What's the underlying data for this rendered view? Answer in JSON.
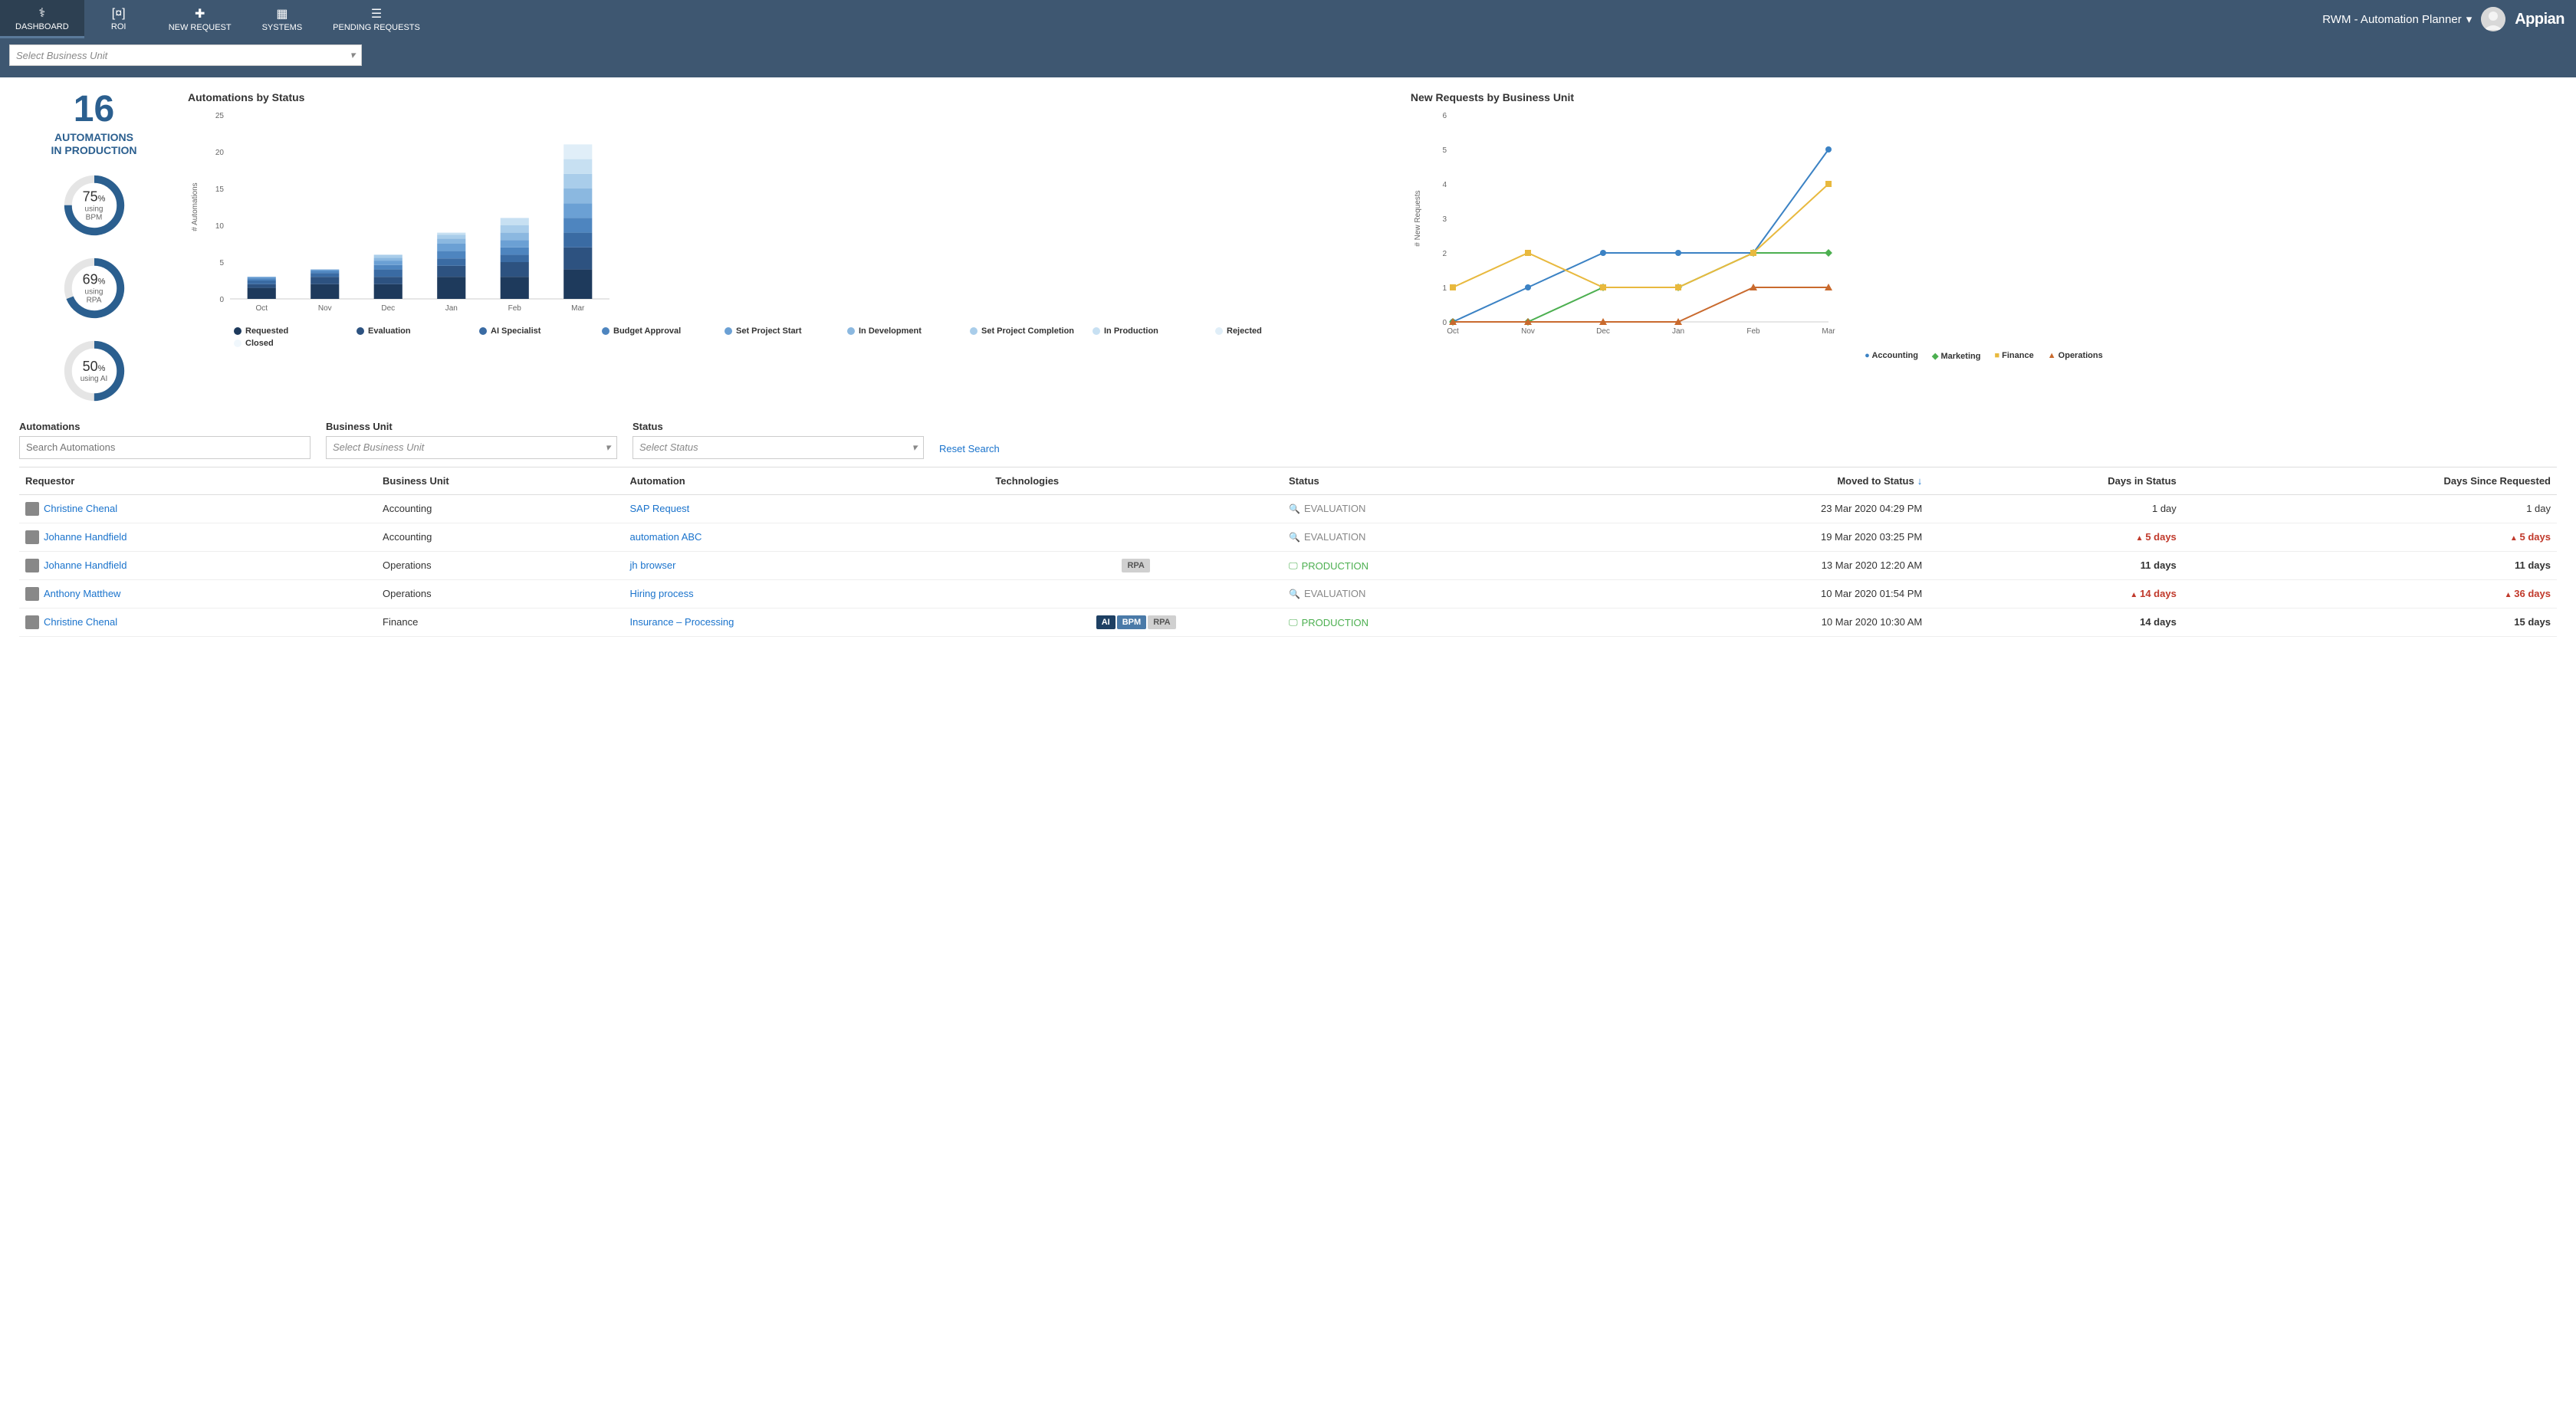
{
  "nav": {
    "items": [
      {
        "label": "DASHBOARD",
        "icon": "⚕"
      },
      {
        "label": "ROI",
        "icon": "[¤]"
      },
      {
        "label": "NEW REQUEST",
        "icon": "✚"
      },
      {
        "label": "SYSTEMS",
        "icon": "▦"
      },
      {
        "label": "PENDING REQUESTS",
        "icon": "☰"
      }
    ],
    "user_label": "RWM - Automation Planner",
    "brand": "Appian"
  },
  "subbar": {
    "bu_placeholder": "Select Business Unit"
  },
  "kpi": {
    "count": "16",
    "label1": "AUTOMATIONS",
    "label2": "IN PRODUCTION",
    "donuts": [
      {
        "pct": "75",
        "sub": "using BPM",
        "fill": 75,
        "color": "#2b5f8f"
      },
      {
        "pct": "69",
        "sub": "using RPA",
        "fill": 69,
        "color": "#2b5f8f"
      },
      {
        "pct": "50",
        "sub": "using AI",
        "fill": 50,
        "color": "#2b5f8f"
      }
    ]
  },
  "bar_chart": {
    "title": "Automations by Status",
    "type": "stacked-bar",
    "ylabel": "# Automations",
    "ylim": [
      0,
      25
    ],
    "yticks": [
      0,
      5,
      10,
      15,
      20,
      25
    ],
    "categories": [
      "Oct",
      "Nov",
      "Dec",
      "Jan",
      "Feb",
      "Mar"
    ],
    "series": [
      {
        "name": "Requested",
        "color": "#1e3a5c",
        "vals": [
          1.5,
          2,
          2,
          3,
          3,
          4
        ]
      },
      {
        "name": "Evaluation",
        "color": "#2d5280",
        "vals": [
          0.5,
          1,
          1,
          1.5,
          2,
          3
        ]
      },
      {
        "name": "AI Specialist",
        "color": "#3a6ba3",
        "vals": [
          0.5,
          0.5,
          1,
          1,
          1,
          2
        ]
      },
      {
        "name": "Budget Approval",
        "color": "#4e85bf",
        "vals": [
          0.3,
          0.3,
          0.6,
          1,
          1,
          2
        ]
      },
      {
        "name": "Set Project Start",
        "color": "#6ba0d4",
        "vals": [
          0.2,
          0.2,
          0.6,
          1,
          1,
          2
        ]
      },
      {
        "name": "In Development",
        "color": "#8bb8e0",
        "vals": [
          0,
          0,
          0.4,
          0.7,
          1,
          2
        ]
      },
      {
        "name": "Set Project Completion",
        "color": "#a9cdea",
        "vals": [
          0,
          0,
          0.4,
          0.5,
          1,
          2
        ]
      },
      {
        "name": "In Production",
        "color": "#c7e0f2",
        "vals": [
          0,
          0,
          0,
          0.3,
          1,
          2
        ]
      },
      {
        "name": "Rejected",
        "color": "#e0eef8",
        "vals": [
          0,
          0,
          0,
          0,
          0,
          2
        ]
      },
      {
        "name": "Closed",
        "color": "#f0f7fc",
        "vals": [
          0,
          0,
          0,
          0,
          0,
          0
        ]
      }
    ],
    "legend_order": [
      "Requested",
      "Evaluation",
      "AI Specialist",
      "Budget Approval",
      "Set Project Start",
      "In Development",
      "Set Project Completion",
      "In Production",
      "Rejected",
      "Closed"
    ]
  },
  "line_chart": {
    "title": "New Requests by Business Unit",
    "type": "line",
    "ylabel": "# New Requests",
    "ylim": [
      0,
      6
    ],
    "yticks": [
      0,
      1,
      2,
      3,
      4,
      5,
      6
    ],
    "categories": [
      "Oct",
      "Nov",
      "Dec",
      "Jan",
      "Feb",
      "Mar"
    ],
    "series": [
      {
        "name": "Accounting",
        "color": "#3b82c4",
        "marker": "circle",
        "vals": [
          0,
          1,
          2,
          2,
          2,
          5
        ]
      },
      {
        "name": "Marketing",
        "color": "#4caf50",
        "marker": "diamond",
        "vals": [
          0,
          0,
          1,
          1,
          2,
          2
        ]
      },
      {
        "name": "Finance",
        "color": "#e8b93e",
        "marker": "square",
        "vals": [
          1,
          2,
          1,
          1,
          2,
          4
        ]
      },
      {
        "name": "Operations",
        "color": "#c96a2e",
        "marker": "triangle",
        "vals": [
          0,
          0,
          0,
          0,
          1,
          1
        ]
      }
    ]
  },
  "filters": {
    "automations_label": "Automations",
    "automations_placeholder": "Search Automations",
    "bu_label": "Business Unit",
    "bu_placeholder": "Select Business Unit",
    "status_label": "Status",
    "status_placeholder": "Select Status",
    "reset": "Reset Search"
  },
  "table": {
    "columns": [
      "Requestor",
      "Business Unit",
      "Automation",
      "Technologies",
      "Status",
      "Moved to Status",
      "Days in Status",
      "Days Since Requested"
    ],
    "sort_col": 5,
    "rows": [
      {
        "requestor": "Christine Chenal",
        "bu": "Accounting",
        "automation": "SAP Request",
        "tech": [],
        "status": "EVALUATION",
        "status_type": "eval",
        "moved": "23 Mar 2020 04:29 PM",
        "days_in": "1 day",
        "days_in_warn": false,
        "days_since": "1 day",
        "days_since_warn": false
      },
      {
        "requestor": "Johanne Handfield",
        "bu": "Accounting",
        "automation": "automation ABC",
        "tech": [],
        "status": "EVALUATION",
        "status_type": "eval",
        "moved": "19 Mar 2020 03:25 PM",
        "days_in": "5 days",
        "days_in_warn": true,
        "days_since": "5 days",
        "days_since_warn": true
      },
      {
        "requestor": "Johanne Handfield",
        "bu": "Operations",
        "automation": "jh browser",
        "tech": [
          "RPA"
        ],
        "status": "PRODUCTION",
        "status_type": "prod",
        "moved": "13 Mar 2020 12:20 AM",
        "days_in": "11 days",
        "days_in_warn": false,
        "days_in_bold": true,
        "days_since": "11 days",
        "days_since_warn": false,
        "days_since_bold": true
      },
      {
        "requestor": "Anthony Matthew",
        "bu": "Operations",
        "automation": "Hiring process",
        "tech": [],
        "status": "EVALUATION",
        "status_type": "eval",
        "moved": "10 Mar 2020 01:54 PM",
        "days_in": "14 days",
        "days_in_warn": true,
        "days_since": "36 days",
        "days_since_warn": true
      },
      {
        "requestor": "Christine Chenal",
        "bu": "Finance",
        "automation": "Insurance – Processing",
        "tech": [
          "AI",
          "BPM",
          "RPA"
        ],
        "status": "PRODUCTION",
        "status_type": "prod",
        "moved": "10 Mar 2020 10:30 AM",
        "days_in": "14 days",
        "days_in_warn": false,
        "days_in_bold": true,
        "days_since": "15 days",
        "days_since_warn": false,
        "days_since_bold": true
      }
    ]
  },
  "colors": {
    "nav_bg": "#3e5771",
    "link": "#1a73cc",
    "accent": "#2b5f8f",
    "warn": "#c0392b",
    "prod": "#4caf50"
  }
}
